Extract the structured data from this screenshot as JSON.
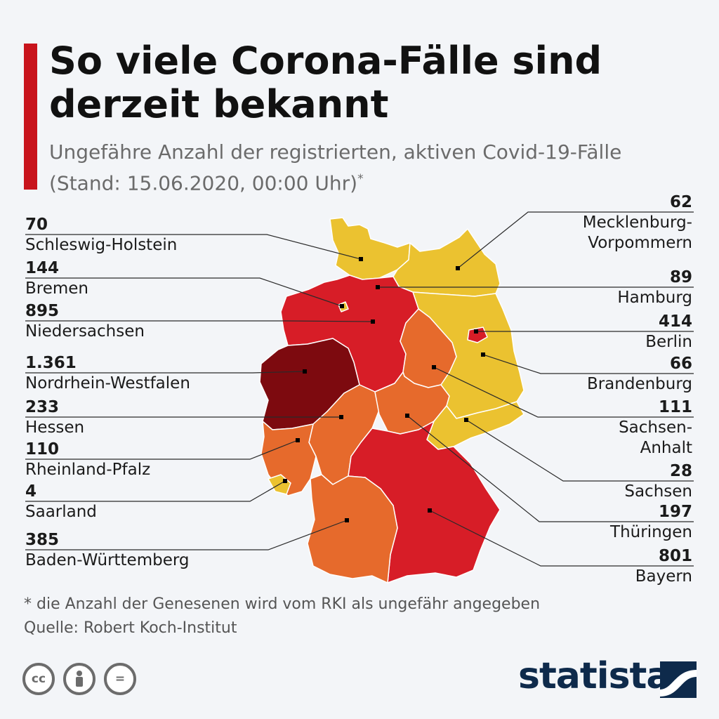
{
  "header": {
    "title": "So viele Corona-Fälle sind derzeit bekannt",
    "subtitle": "Ungefähre Anzahl der registrierten, aktiven Covid-19-Fälle (Stand: 15.06.2020, 00:00 Uhr)",
    "subtitle_marker": "*"
  },
  "colors": {
    "accent": "#c8141c",
    "very_high": "#7d0a0f",
    "high": "#d71d27",
    "medium": "#e66a2c",
    "low": "#ebc230",
    "brand": "#0e2a4b"
  },
  "states": {
    "schleswig_holstein": {
      "value": "70",
      "name": "Schleswig-Holstein"
    },
    "bremen": {
      "value": "144",
      "name": "Bremen"
    },
    "niedersachsen": {
      "value": "895",
      "name": "Niedersachsen"
    },
    "nordrhein_westfalen": {
      "value": "1.361",
      "name": "Nordrhein-Westfalen"
    },
    "hessen": {
      "value": "233",
      "name": "Hessen"
    },
    "rheinland_pfalz": {
      "value": "110",
      "name": "Rheinland-Pfalz"
    },
    "saarland": {
      "value": "4",
      "name": "Saarland"
    },
    "baden_wuerttemberg": {
      "value": "385",
      "name": "Baden-Württemberg"
    },
    "mecklenburg_vorpommern": {
      "value": "62",
      "name": "Mecklenburg-Vorpommern"
    },
    "hamburg": {
      "value": "89",
      "name": "Hamburg"
    },
    "berlin": {
      "value": "414",
      "name": "Berlin"
    },
    "brandenburg": {
      "value": "66",
      "name": "Brandenburg"
    },
    "sachsen_anhalt": {
      "value": "111",
      "name": "Sachsen-Anhalt"
    },
    "sachsen": {
      "value": "28",
      "name": "Sachsen"
    },
    "thueringen": {
      "value": "197",
      "name": "Thüringen"
    },
    "bayern": {
      "value": "801",
      "name": "Bayern"
    }
  },
  "right_name_lines": {
    "mecklenburg_vorpommern": [
      "Mecklenburg-",
      "Vorpommern"
    ],
    "sachsen_anhalt": [
      "Sachsen-",
      "Anhalt"
    ]
  },
  "footer": {
    "footnote": "* die Anzahl der Genesenen wird vom RKI als ungefähr angegeben",
    "source": "Quelle: Robert Koch-Institut",
    "license_icons": [
      "creative-commons-icon",
      "attribution-icon",
      "no-derivatives-icon"
    ],
    "license_text": [
      "cc",
      "=",
      ""
    ],
    "brand": "statista"
  }
}
